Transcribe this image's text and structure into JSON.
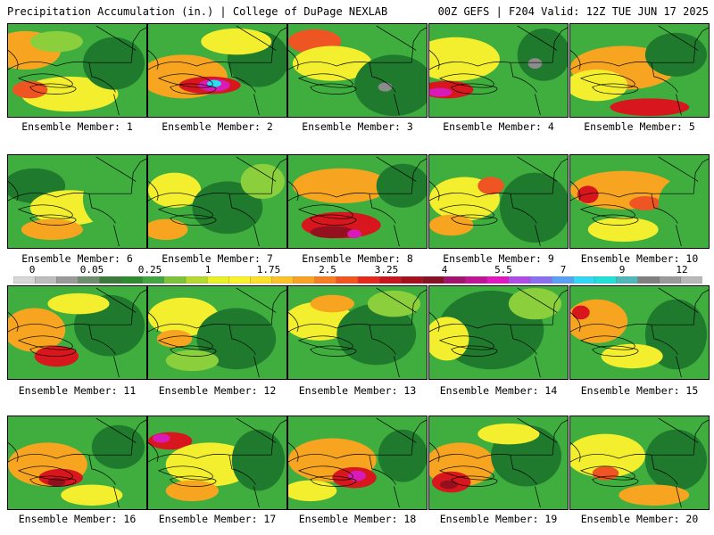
{
  "header": {
    "left": "Precipitation Accumulation (in.) | College of DuPage NEXLAB",
    "right": "00Z GEFS | F204 Valid: 12Z TUE JUN 17 2025"
  },
  "colorbar": {
    "labels": [
      "0",
      "0.05",
      "0.25",
      "1",
      "1.75",
      "2.5",
      "3.25",
      "4",
      "5.5",
      "7",
      "9",
      "12"
    ],
    "colors": [
      "#d7d7d7",
      "#bdbdbd",
      "#9a9a9a",
      "#6e8e6e",
      "#3c7a3c",
      "#2e8b2e",
      "#41a641",
      "#7cc23a",
      "#b5d930",
      "#e8f028",
      "#fbf32a",
      "#fce02a",
      "#fcc227",
      "#f9a225",
      "#f77e22",
      "#f2561e",
      "#e42a1c",
      "#c8141c",
      "#a4101e",
      "#861024",
      "#a0146e",
      "#c01496",
      "#e018c0",
      "#b04ce6",
      "#8a70f0",
      "#5aa0f4",
      "#30d8f4",
      "#20e0d8",
      "#50b8b8",
      "#808080",
      "#9a9a9a",
      "#b8b8b8"
    ]
  },
  "palette": {
    "dark_green": "#1f7a2e",
    "green": "#3fae3f",
    "light_green": "#8ccf3c",
    "yellow": "#f3ee2e",
    "orange": "#f7a520",
    "red_orange": "#ef5522",
    "red": "#d8161d",
    "dark_red": "#95101f",
    "magenta": "#d81ab8",
    "cyan": "#26e0f0",
    "gray": "#8c8c8c"
  },
  "panels": [
    {
      "caption": "Ensemble Member: 1"
    },
    {
      "caption": "Ensemble Member: 2"
    },
    {
      "caption": "Ensemble Member: 3"
    },
    {
      "caption": "Ensemble Member: 4"
    },
    {
      "caption": "Ensemble Member: 5"
    },
    {
      "caption": "Ensemble Member: 6"
    },
    {
      "caption": "Ensemble Member: 7"
    },
    {
      "caption": "Ensemble Member: 8"
    },
    {
      "caption": "Ensemble Member: 9"
    },
    {
      "caption": "Ensemble Member: 10"
    },
    {
      "caption": "Ensemble Member: 11"
    },
    {
      "caption": "Ensemble Member: 12"
    },
    {
      "caption": "Ensemble Member: 13"
    },
    {
      "caption": "Ensemble Member: 14"
    },
    {
      "caption": "Ensemble Member: 15"
    },
    {
      "caption": "Ensemble Member: 16"
    },
    {
      "caption": "Ensemble Member: 17"
    },
    {
      "caption": "Ensemble Member: 18"
    },
    {
      "caption": "Ensemble Member: 19"
    },
    {
      "caption": "Ensemble Member: 20"
    }
  ]
}
